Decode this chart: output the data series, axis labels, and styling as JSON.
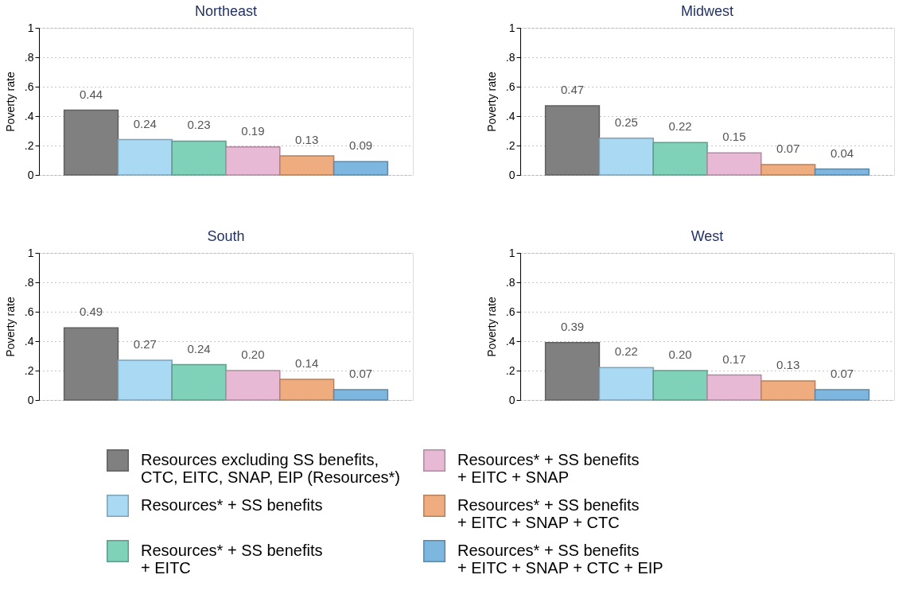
{
  "chart_data": [
    {
      "type": "bar",
      "title": "Northeast",
      "ylabel": "Poverty rate",
      "categories": [
        null
      ],
      "ylim": [
        0,
        1
      ],
      "yticks": [
        0,
        {
          "value": 0.2,
          "label": ".2"
        },
        {
          "value": 0.4,
          "label": ".4"
        },
        {
          "value": 0.6,
          "label": ".6"
        },
        {
          "value": 0.8,
          "label": ".8"
        },
        1
      ],
      "grid": "y",
      "series": [
        {
          "color": "#808080",
          "values": [
            0.44
          ],
          "value_labels": [
            "0.44"
          ]
        },
        {
          "color": "#a9d9f3",
          "values": [
            0.24
          ],
          "value_labels": [
            "0.24"
          ]
        },
        {
          "color": "#7fd1b8",
          "values": [
            0.23
          ],
          "value_labels": [
            "0.23"
          ]
        },
        {
          "color": "#e7b9d5",
          "values": [
            0.19
          ],
          "value_labels": [
            "0.19"
          ]
        },
        {
          "color": "#efad7f",
          "values": [
            0.13
          ],
          "value_labels": [
            "0.13"
          ]
        },
        {
          "color": "#7db6de",
          "values": [
            0.09
          ],
          "value_labels": [
            "0.09"
          ]
        }
      ]
    },
    {
      "type": "bar",
      "title": "Midwest",
      "ylabel": "Poverty rate",
      "categories": [
        null
      ],
      "ylim": [
        0,
        1
      ],
      "yticks": [
        0,
        {
          "value": 0.2,
          "label": ".2"
        },
        {
          "value": 0.4,
          "label": ".4"
        },
        {
          "value": 0.6,
          "label": ".6"
        },
        {
          "value": 0.8,
          "label": ".8"
        },
        1
      ],
      "grid": "y",
      "series": [
        {
          "color": "#808080",
          "values": [
            0.47
          ],
          "value_labels": [
            "0.47"
          ]
        },
        {
          "color": "#a9d9f3",
          "values": [
            0.25
          ],
          "value_labels": [
            "0.25"
          ]
        },
        {
          "color": "#7fd1b8",
          "values": [
            0.22
          ],
          "value_labels": [
            "0.22"
          ]
        },
        {
          "color": "#e7b9d5",
          "values": [
            0.15
          ],
          "value_labels": [
            "0.15"
          ]
        },
        {
          "color": "#efad7f",
          "values": [
            0.07
          ],
          "value_labels": [
            "0.07"
          ]
        },
        {
          "color": "#7db6de",
          "values": [
            0.04
          ],
          "value_labels": [
            "0.04"
          ]
        }
      ]
    },
    {
      "type": "bar",
      "title": "South",
      "ylabel": "Poverty rate",
      "categories": [
        null
      ],
      "ylim": [
        0,
        1
      ],
      "yticks": [
        0,
        {
          "value": 0.2,
          "label": ".2"
        },
        {
          "value": 0.4,
          "label": ".4"
        },
        {
          "value": 0.6,
          "label": ".6"
        },
        {
          "value": 0.8,
          "label": ".8"
        },
        1
      ],
      "grid": "y",
      "series": [
        {
          "color": "#808080",
          "values": [
            0.49
          ],
          "value_labels": [
            "0.49"
          ]
        },
        {
          "color": "#a9d9f3",
          "values": [
            0.27
          ],
          "value_labels": [
            "0.27"
          ]
        },
        {
          "color": "#7fd1b8",
          "values": [
            0.24
          ],
          "value_labels": [
            "0.24"
          ]
        },
        {
          "color": "#e7b9d5",
          "values": [
            0.2
          ],
          "value_labels": [
            "0.20"
          ]
        },
        {
          "color": "#efad7f",
          "values": [
            0.14
          ],
          "value_labels": [
            "0.14"
          ]
        },
        {
          "color": "#7db6de",
          "values": [
            0.07
          ],
          "value_labels": [
            "0.07"
          ]
        }
      ]
    },
    {
      "type": "bar",
      "title": "West",
      "ylabel": "Poverty rate",
      "categories": [
        null
      ],
      "ylim": [
        0,
        1
      ],
      "yticks": [
        0,
        {
          "value": 0.2,
          "label": ".2"
        },
        {
          "value": 0.4,
          "label": ".4"
        },
        {
          "value": 0.6,
          "label": ".6"
        },
        {
          "value": 0.8,
          "label": ".8"
        },
        1
      ],
      "grid": "y",
      "legend": "bottom",
      "series": [
        {
          "name": "Resources excluding SS benefits,\nCTC, EITC, SNAP, EIP (Resources*)",
          "color": "#808080",
          "values": [
            0.39
          ],
          "value_labels": [
            "0.39"
          ]
        },
        {
          "name": "Resources* + SS benefits",
          "color": "#a9d9f3",
          "values": [
            0.22
          ],
          "value_labels": [
            "0.22"
          ]
        },
        {
          "name": "Resources* + SS benefits\n+ EITC",
          "color": "#7fd1b8",
          "values": [
            0.2
          ],
          "value_labels": [
            "0.20"
          ]
        },
        {
          "name": "Resources* + SS benefits\n+ EITC + SNAP",
          "color": "#e7b9d5",
          "values": [
            0.17
          ],
          "value_labels": [
            "0.17"
          ]
        },
        {
          "name": "Resources* + SS benefits\n+ EITC + SNAP + CTC",
          "color": "#efad7f",
          "values": [
            0.13
          ],
          "value_labels": [
            "0.13"
          ]
        },
        {
          "name": "Resources* + SS benefits\n+ EITC + SNAP + CTC + EIP",
          "color": "#7db6de",
          "values": [
            0.07
          ],
          "value_labels": [
            "0.07"
          ]
        }
      ]
    }
  ]
}
